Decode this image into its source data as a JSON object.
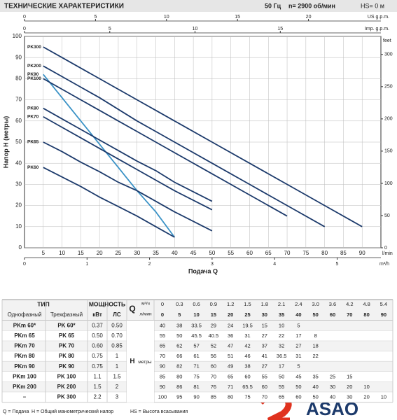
{
  "header": {
    "title": "ТЕХНИЧЕСКИЕ ХАРАКТЕРИСТИКИ",
    "frequency": "50 Гц",
    "speed": "n= 2900 об/мин",
    "suction": "HS= 0 м"
  },
  "chart_data": {
    "type": "line",
    "y_label": "Напор H (метры)",
    "x_label": "Подача Q",
    "x_unit": "l/min",
    "xlim": [
      0,
      95
    ],
    "xticks": [
      5,
      10,
      15,
      20,
      25,
      30,
      35,
      40,
      45,
      50,
      55,
      60,
      65,
      70,
      75,
      80,
      85,
      90
    ],
    "ylim": [
      0,
      100
    ],
    "yticks": [
      0,
      10,
      20,
      30,
      40,
      50,
      60,
      70,
      80,
      90,
      100
    ],
    "grid": true,
    "y2_unit": "feet",
    "y2lim": [
      0,
      328
    ],
    "y2ticks": [
      0,
      50,
      100,
      150,
      200,
      250,
      300
    ],
    "top_axes": [
      {
        "unit": "US g.p.m.",
        "lim": [
          0,
          25.1
        ],
        "ticks": [
          0,
          5,
          10,
          15,
          20
        ]
      },
      {
        "unit": "Imp. g.p.m.",
        "lim": [
          0,
          20.9
        ],
        "ticks": [
          0,
          5,
          10,
          15
        ]
      }
    ],
    "bottom_axis": {
      "unit": "m³/h",
      "lim": [
        0,
        5.7
      ],
      "ticks": [
        0,
        1,
        2,
        3,
        4,
        5
      ]
    },
    "series": [
      {
        "name": "PK300",
        "color": "#1c3a6b",
        "x": [
          5,
          10,
          15,
          20,
          25,
          30,
          35,
          40,
          50,
          60,
          70,
          80,
          90
        ],
        "values": [
          95,
          90,
          85,
          80,
          75,
          70,
          65,
          60,
          50,
          40,
          30,
          20,
          10
        ]
      },
      {
        "name": "PK200",
        "color": "#1c3a6b",
        "x": [
          5,
          10,
          15,
          20,
          25,
          30,
          35,
          40,
          50,
          60,
          70,
          80
        ],
        "values": [
          86,
          81,
          76,
          71,
          65.5,
          60,
          55,
          50,
          40,
          30,
          20,
          10
        ]
      },
      {
        "name": "PK90",
        "color": "#3a92c6",
        "x": [
          5,
          10,
          15,
          20,
          25,
          30,
          35,
          40
        ],
        "values": [
          82,
          71,
          60,
          49,
          38,
          27,
          17,
          5
        ]
      },
      {
        "name": "PK100",
        "color": "#1c3a6b",
        "x": [
          5,
          10,
          15,
          20,
          25,
          30,
          35,
          40,
          50,
          60,
          70
        ],
        "values": [
          80,
          75,
          70,
          65,
          60,
          55,
          50,
          45,
          35,
          25,
          15
        ]
      },
      {
        "name": "PK80",
        "color": "#1c3a6b",
        "x": [
          5,
          10,
          15,
          20,
          25,
          30,
          35,
          40,
          50
        ],
        "values": [
          66,
          61,
          56,
          51,
          46,
          41,
          36.5,
          31,
          22
        ]
      },
      {
        "name": "PK70",
        "color": "#1c3a6b",
        "x": [
          5,
          10,
          15,
          20,
          25,
          30,
          35,
          40,
          50
        ],
        "values": [
          62,
          57,
          52,
          47,
          42,
          37,
          32,
          27,
          18
        ]
      },
      {
        "name": "PK65",
        "color": "#1c3a6b",
        "x": [
          5,
          10,
          15,
          20,
          25,
          30,
          35,
          40,
          50
        ],
        "values": [
          50,
          45.5,
          40.5,
          36,
          31,
          27,
          22,
          17,
          8
        ]
      },
      {
        "name": "PK60",
        "color": "#1c3a6b",
        "x": [
          5,
          10,
          15,
          20,
          25,
          30,
          35,
          40
        ],
        "values": [
          38,
          33.5,
          29,
          24,
          19.5,
          15,
          10,
          5
        ]
      }
    ]
  },
  "table": {
    "type_header": "ТИП",
    "power_header": "МОЩНОСТЬ",
    "q_header": "Q",
    "q_unit_m3h": "м³/ч",
    "q_unit_lmin": "л/мин",
    "columns": [
      "Однофазный",
      "Трехфазный",
      "кВт",
      "ЛС"
    ],
    "q_m3h": [
      "0",
      "0.3",
      "0.6",
      "0.9",
      "1.2",
      "1.5",
      "1.8",
      "2.1",
      "2.4",
      "3.0",
      "3.6",
      "4.2",
      "4.8",
      "5.4"
    ],
    "q_lmin": [
      "0",
      "5",
      "10",
      "15",
      "20",
      "25",
      "30",
      "35",
      "40",
      "50",
      "60",
      "70",
      "80",
      "90"
    ],
    "h_label": "H",
    "h_unit": "метры",
    "rows": [
      {
        "single": "PKm 60*",
        "three": "PK 60*",
        "kw": "0.37",
        "hp": "0.50",
        "h": [
          "40",
          "38",
          "33.5",
          "29",
          "24",
          "19.5",
          "15",
          "10",
          "5"
        ]
      },
      {
        "single": "PKm 65",
        "three": "PK 65",
        "kw": "0.50",
        "hp": "0.70",
        "h": [
          "55",
          "50",
          "45.5",
          "40.5",
          "36",
          "31",
          "27",
          "22",
          "17",
          "8"
        ]
      },
      {
        "single": "PKm 70",
        "three": "PK 70",
        "kw": "0.60",
        "hp": "0.85",
        "h": [
          "65",
          "62",
          "57",
          "52",
          "47",
          "42",
          "37",
          "32",
          "27",
          "18"
        ]
      },
      {
        "single": "PKm 80",
        "three": "PK 80",
        "kw": "0.75",
        "hp": "1",
        "h": [
          "70",
          "66",
          "61",
          "56",
          "51",
          "46",
          "41",
          "36.5",
          "31",
          "22"
        ]
      },
      {
        "single": "PKm 90",
        "three": "PK 90",
        "kw": "0.75",
        "hp": "1",
        "h": [
          "90",
          "82",
          "71",
          "60",
          "49",
          "38",
          "27",
          "17",
          "5"
        ]
      },
      {
        "single": "PKm 100",
        "three": "PK 100",
        "kw": "1.1",
        "hp": "1.5",
        "h": [
          "85",
          "80",
          "75",
          "70",
          "65",
          "60",
          "55",
          "50",
          "45",
          "35",
          "25",
          "15"
        ]
      },
      {
        "single": "PKm 200",
        "three": "PK 200",
        "kw": "1.5",
        "hp": "2",
        "h": [
          "90",
          "86",
          "81",
          "76",
          "71",
          "65.5",
          "60",
          "55",
          "50",
          "40",
          "30",
          "20",
          "10"
        ]
      },
      {
        "single": "–",
        "three": "PK 300",
        "kw": "2.2",
        "hp": "3",
        "h": [
          "100",
          "95",
          "90",
          "85",
          "80",
          "75",
          "70",
          "65",
          "60",
          "50",
          "40",
          "30",
          "20",
          "10"
        ]
      }
    ]
  },
  "footer": {
    "legend": [
      "Q = Подача",
      "H = Общий манометрический напор",
      "HS = Высота всасывания"
    ],
    "brand": "ASAO"
  }
}
